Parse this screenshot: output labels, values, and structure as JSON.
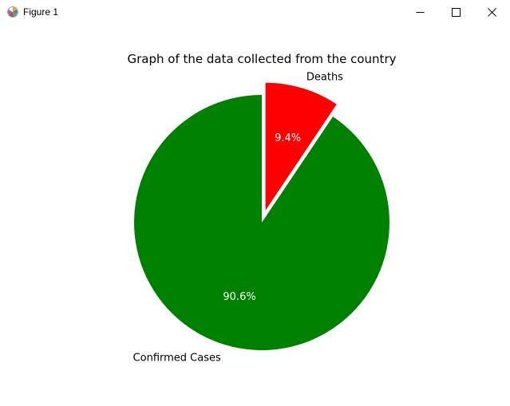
{
  "window": {
    "title": "Figure 1",
    "controls": {
      "minimize": "minimize",
      "maximize": "maximize",
      "close": "close"
    }
  },
  "chart_data": {
    "type": "pie",
    "title": "Graph of the data collected from the country",
    "slices": [
      {
        "label": "Deaths",
        "percent": 9.4,
        "pct_label": "9.4%",
        "color": "#ff0000",
        "exploded": true
      },
      {
        "label": "Confirmed Cases",
        "percent": 90.6,
        "pct_label": "90.6%",
        "color": "#008000",
        "exploded": false
      }
    ],
    "start_angle_deg": 90,
    "direction": "clockwise",
    "edge_color": "#ffffff"
  }
}
